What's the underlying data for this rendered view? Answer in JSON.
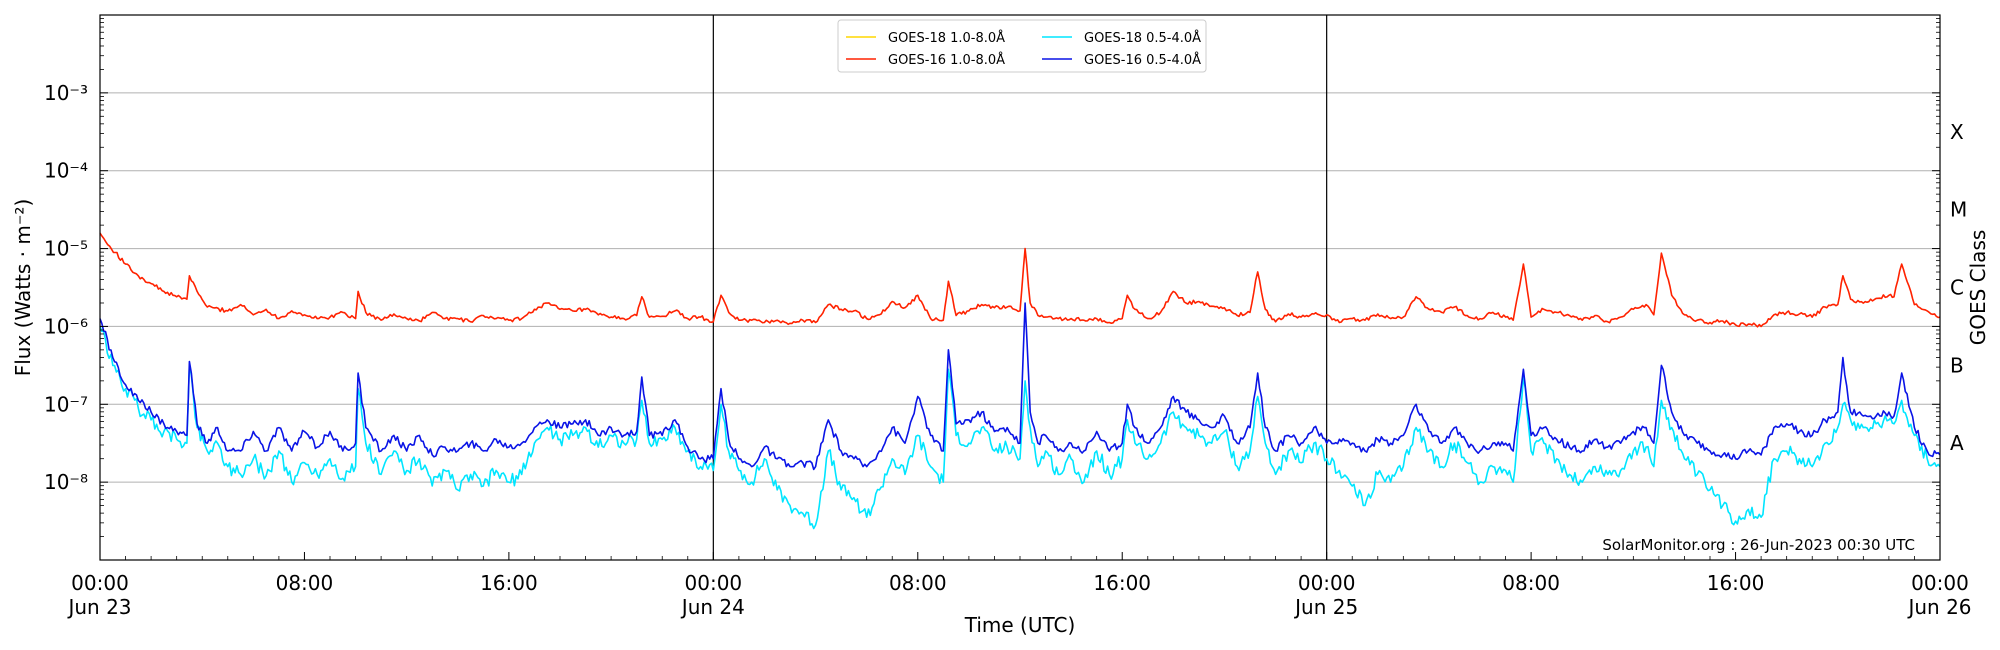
{
  "chart_data": {
    "type": "line",
    "title": "",
    "xlabel": "Time (UTC)",
    "ylabel": "Flux (Watts · m⁻²)",
    "y2label": "GOES Class",
    "yscale": "log",
    "ylim": [
      1e-09,
      0.01
    ],
    "xlim_hours": [
      0,
      72
    ],
    "grid": "horizontal at decades",
    "legend_placement": "top-center",
    "credit": "SolarMonitor.org : 26-Jun-2023 00:30 UTC",
    "day_dividers_hours": [
      24,
      48
    ],
    "x_ticks": [
      {
        "h": 0,
        "line1": "00:00",
        "line2": "Jun 23"
      },
      {
        "h": 8,
        "line1": "08:00",
        "line2": ""
      },
      {
        "h": 16,
        "line1": "16:00",
        "line2": ""
      },
      {
        "h": 24,
        "line1": "00:00",
        "line2": "Jun 24"
      },
      {
        "h": 32,
        "line1": "08:00",
        "line2": ""
      },
      {
        "h": 40,
        "line1": "16:00",
        "line2": ""
      },
      {
        "h": 48,
        "line1": "00:00",
        "line2": "Jun 25"
      },
      {
        "h": 56,
        "line1": "08:00",
        "line2": ""
      },
      {
        "h": 64,
        "line1": "16:00",
        "line2": ""
      },
      {
        "h": 72,
        "line1": "00:00",
        "line2": "Jun 26"
      }
    ],
    "y_ticks": [
      {
        "exp": -8,
        "label": "10⁻⁸"
      },
      {
        "exp": -7,
        "label": "10⁻⁷"
      },
      {
        "exp": -6,
        "label": "10⁻⁶"
      },
      {
        "exp": -5,
        "label": "10⁻⁵"
      },
      {
        "exp": -4,
        "label": "10⁻⁴"
      },
      {
        "exp": -3,
        "label": "10⁻³"
      }
    ],
    "goes_classes": [
      {
        "label": "A",
        "log_flux": -7.5
      },
      {
        "label": "B",
        "log_flux": -6.5
      },
      {
        "label": "C",
        "log_flux": -5.5
      },
      {
        "label": "M",
        "log_flux": -4.5
      },
      {
        "label": "X",
        "log_flux": -3.5
      }
    ],
    "series": [
      {
        "name": "GOES-18 1.0-8.0Å",
        "color": "#ffd700",
        "x": [],
        "log_flux": []
      },
      {
        "name": "GOES-16 1.0-8.0Å",
        "color": "#ff2200",
        "x": [
          0,
          0.3,
          0.6,
          1,
          1.5,
          2,
          2.5,
          3,
          3.4,
          3.5,
          3.8,
          4.2,
          5,
          5.5,
          6,
          6.5,
          7,
          7.5,
          8,
          8.5,
          9,
          9.5,
          10,
          10.1,
          10.4,
          11,
          11.5,
          12,
          12.5,
          13,
          13.5,
          14,
          14.5,
          15,
          15.5,
          16,
          16.5,
          17,
          17.5,
          18,
          18.5,
          19,
          19.5,
          20,
          20.5,
          21,
          21.2,
          21.5,
          22,
          22.5,
          23,
          23.5,
          24,
          24.3,
          24.6,
          25,
          25.5,
          26,
          26.5,
          27,
          27.5,
          28,
          28.5,
          29,
          29.5,
          30,
          30.5,
          31,
          31.5,
          32,
          32.5,
          33,
          33.2,
          33.5,
          34,
          34.5,
          35,
          35.5,
          36,
          36.2,
          36.4,
          36.7,
          37,
          37.5,
          38,
          38.5,
          39,
          39.5,
          40,
          40.2,
          40.5,
          41,
          41.5,
          42,
          42.5,
          43,
          43.5,
          44,
          44.5,
          45,
          45.3,
          45.6,
          46,
          46.5,
          47,
          47.5,
          48,
          48.5,
          49,
          49.5,
          50,
          50.5,
          51,
          51.5,
          52,
          52.5,
          53,
          53.5,
          54,
          54.5,
          55,
          55.3,
          55.7,
          56,
          56.5,
          57,
          57.5,
          58,
          58.5,
          59,
          59.5,
          60,
          60.5,
          60.8,
          61.1,
          61.5,
          62,
          62.5,
          63,
          63.5,
          64,
          64.5,
          65,
          65.5,
          66,
          66.5,
          67,
          67.5,
          68,
          68.2,
          68.5,
          69,
          69.5,
          70,
          70.2,
          70.5,
          71,
          71.5,
          72
        ],
        "log_flux": [
          -4.8,
          -4.95,
          -5.05,
          -5.2,
          -5.35,
          -5.45,
          -5.55,
          -5.62,
          -5.65,
          -5.35,
          -5.55,
          -5.75,
          -5.8,
          -5.72,
          -5.85,
          -5.78,
          -5.9,
          -5.8,
          -5.85,
          -5.9,
          -5.88,
          -5.82,
          -5.9,
          -5.55,
          -5.82,
          -5.92,
          -5.84,
          -5.9,
          -5.93,
          -5.82,
          -5.9,
          -5.9,
          -5.94,
          -5.86,
          -5.9,
          -5.92,
          -5.9,
          -5.78,
          -5.7,
          -5.78,
          -5.8,
          -5.78,
          -5.85,
          -5.88,
          -5.9,
          -5.86,
          -5.62,
          -5.88,
          -5.87,
          -5.8,
          -5.9,
          -5.88,
          -5.94,
          -5.6,
          -5.82,
          -5.92,
          -5.92,
          -5.95,
          -5.92,
          -5.96,
          -5.92,
          -5.95,
          -5.72,
          -5.78,
          -5.8,
          -5.9,
          -5.85,
          -5.68,
          -5.76,
          -5.6,
          -5.9,
          -5.92,
          -5.42,
          -5.86,
          -5.8,
          -5.72,
          -5.76,
          -5.75,
          -5.8,
          -5.0,
          -5.7,
          -5.86,
          -5.88,
          -5.9,
          -5.9,
          -5.92,
          -5.9,
          -5.95,
          -5.9,
          -5.6,
          -5.78,
          -5.9,
          -5.82,
          -5.55,
          -5.7,
          -5.68,
          -5.74,
          -5.76,
          -5.86,
          -5.82,
          -5.3,
          -5.78,
          -5.94,
          -5.84,
          -5.88,
          -5.84,
          -5.85,
          -5.95,
          -5.9,
          -5.92,
          -5.84,
          -5.9,
          -5.88,
          -5.62,
          -5.78,
          -5.82,
          -5.75,
          -5.86,
          -5.9,
          -5.82,
          -5.88,
          -5.92,
          -5.2,
          -5.88,
          -5.78,
          -5.82,
          -5.86,
          -5.92,
          -5.86,
          -5.94,
          -5.88,
          -5.78,
          -5.72,
          -5.85,
          -5.06,
          -5.6,
          -5.85,
          -5.92,
          -5.95,
          -5.93,
          -5.98,
          -5.97,
          -6.0,
          -5.85,
          -5.82,
          -5.84,
          -5.88,
          -5.75,
          -5.72,
          -5.35,
          -5.65,
          -5.7,
          -5.64,
          -5.6,
          -5.62,
          -5.2,
          -5.72,
          -5.8,
          -5.88,
          -5.87
        ]
      },
      {
        "name": "GOES-18 0.5-4.0Å",
        "color": "#00e5ff",
        "x": [
          0,
          0.5,
          1,
          1.5,
          2,
          2.5,
          3,
          3.4,
          3.5,
          3.8,
          4.2,
          4.6,
          5,
          5.5,
          6,
          6.5,
          7,
          7.5,
          8,
          8.5,
          9,
          9.5,
          10,
          10.1,
          10.4,
          11,
          11.5,
          12,
          12.5,
          13,
          13.5,
          14,
          14.5,
          15,
          15.5,
          16,
          16.5,
          17,
          17.5,
          18,
          18.5,
          19,
          19.5,
          20,
          20.5,
          21,
          21.2,
          21.5,
          22,
          22.5,
          23,
          23.5,
          24,
          24.3,
          24.6,
          25,
          25.5,
          26,
          26.5,
          27,
          27.5,
          28,
          28.5,
          29,
          29.5,
          30,
          30.5,
          31,
          31.5,
          32,
          32.5,
          33,
          33.2,
          33.5,
          34,
          34.5,
          35,
          35.5,
          36,
          36.2,
          36.4,
          36.7,
          37,
          37.5,
          38,
          38.5,
          39,
          39.5,
          40,
          40.2,
          40.5,
          41,
          41.5,
          42,
          42.5,
          43,
          43.5,
          44,
          44.5,
          45,
          45.3,
          45.6,
          46,
          46.5,
          47,
          47.5,
          48,
          48.5,
          49,
          49.5,
          50,
          50.5,
          51,
          51.5,
          52,
          52.5,
          53,
          53.5,
          54,
          54.5,
          55,
          55.3,
          55.7,
          56,
          56.5,
          57,
          57.5,
          58,
          58.5,
          59,
          59.5,
          60,
          60.5,
          60.8,
          61.1,
          61.5,
          62,
          62.5,
          63,
          63.5,
          64,
          64.5,
          65,
          65.5,
          66,
          66.5,
          67,
          67.5,
          68,
          68.2,
          68.5,
          69,
          69.5,
          70,
          70.2,
          70.5,
          71,
          71.5,
          72
        ],
        "log_flux": [
          -6.0,
          -6.5,
          -6.8,
          -7.05,
          -7.2,
          -7.35,
          -7.45,
          -7.5,
          -6.5,
          -7.3,
          -7.6,
          -7.5,
          -7.8,
          -7.9,
          -7.7,
          -7.92,
          -7.6,
          -8.0,
          -7.75,
          -7.9,
          -7.7,
          -7.95,
          -7.8,
          -6.8,
          -7.5,
          -7.9,
          -7.6,
          -7.85,
          -7.7,
          -8.05,
          -7.85,
          -8.1,
          -7.9,
          -8.05,
          -7.85,
          -8.0,
          -7.9,
          -7.5,
          -7.3,
          -7.45,
          -7.4,
          -7.3,
          -7.55,
          -7.4,
          -7.5,
          -7.45,
          -6.95,
          -7.5,
          -7.45,
          -7.3,
          -7.6,
          -7.8,
          -7.85,
          -7.0,
          -7.6,
          -7.85,
          -8.0,
          -7.7,
          -8.1,
          -8.3,
          -8.4,
          -8.55,
          -7.6,
          -8.1,
          -8.2,
          -8.45,
          -8.1,
          -7.7,
          -7.9,
          -7.4,
          -7.8,
          -8.0,
          -6.55,
          -7.4,
          -7.5,
          -7.3,
          -7.6,
          -7.55,
          -7.7,
          -6.7,
          -7.3,
          -7.8,
          -7.6,
          -7.9,
          -7.7,
          -8.0,
          -7.6,
          -7.9,
          -7.7,
          -7.2,
          -7.5,
          -7.7,
          -7.5,
          -7.1,
          -7.3,
          -7.4,
          -7.5,
          -7.35,
          -7.8,
          -7.6,
          -6.9,
          -7.5,
          -7.9,
          -7.6,
          -7.75,
          -7.5,
          -7.7,
          -7.85,
          -8.05,
          -8.3,
          -7.9,
          -8.0,
          -7.8,
          -7.3,
          -7.6,
          -7.8,
          -7.5,
          -7.75,
          -8.0,
          -7.8,
          -7.85,
          -8.0,
          -6.65,
          -7.6,
          -7.5,
          -7.7,
          -7.9,
          -8.0,
          -7.8,
          -7.9,
          -7.85,
          -7.6,
          -7.55,
          -7.8,
          -6.95,
          -7.3,
          -7.7,
          -7.9,
          -8.1,
          -8.3,
          -8.5,
          -8.35,
          -8.45,
          -7.7,
          -7.6,
          -7.7,
          -7.8,
          -7.5,
          -7.3,
          -7.0,
          -7.2,
          -7.3,
          -7.25,
          -7.2,
          -7.25,
          -6.95,
          -7.4,
          -7.7,
          -7.8,
          -7.75
        ]
      },
      {
        "name": "GOES-16 0.5-4.0Å",
        "color": "#0a14e6",
        "x": [
          0,
          0.5,
          1,
          1.5,
          2,
          2.5,
          3,
          3.4,
          3.5,
          3.8,
          4.2,
          4.6,
          5,
          5.5,
          6,
          6.5,
          7,
          7.5,
          8,
          8.5,
          9,
          9.5,
          10,
          10.1,
          10.4,
          11,
          11.5,
          12,
          12.5,
          13,
          13.5,
          14,
          14.5,
          15,
          15.5,
          16,
          16.5,
          17,
          17.5,
          18,
          18.5,
          19,
          19.5,
          20,
          20.5,
          21,
          21.2,
          21.5,
          22,
          22.5,
          23,
          23.5,
          24,
          24.3,
          24.6,
          25,
          25.5,
          26,
          26.5,
          27,
          27.5,
          28,
          28.5,
          29,
          29.5,
          30,
          30.5,
          31,
          31.5,
          32,
          32.5,
          33,
          33.2,
          33.5,
          34,
          34.5,
          35,
          35.5,
          36,
          36.2,
          36.4,
          36.7,
          37,
          37.5,
          38,
          38.5,
          39,
          39.5,
          40,
          40.2,
          40.5,
          41,
          41.5,
          42,
          42.5,
          43,
          43.5,
          44,
          44.5,
          45,
          45.3,
          45.6,
          46,
          46.5,
          47,
          47.5,
          48,
          48.5,
          49,
          49.5,
          50,
          50.5,
          51,
          51.5,
          52,
          52.5,
          53,
          53.5,
          54,
          54.5,
          55,
          55.3,
          55.7,
          56,
          56.5,
          57,
          57.5,
          58,
          58.5,
          59,
          59.5,
          60,
          60.5,
          60.8,
          61.1,
          61.5,
          62,
          62.5,
          63,
          63.5,
          64,
          64.5,
          65,
          65.5,
          66,
          66.5,
          67,
          67.5,
          68,
          68.2,
          68.5,
          69,
          69.5,
          70,
          70.2,
          70.5,
          71,
          71.5,
          72
        ],
        "log_flux": [
          -5.9,
          -6.4,
          -6.75,
          -6.95,
          -7.1,
          -7.25,
          -7.35,
          -7.4,
          -6.45,
          -7.25,
          -7.5,
          -7.3,
          -7.6,
          -7.6,
          -7.35,
          -7.6,
          -7.3,
          -7.6,
          -7.35,
          -7.55,
          -7.35,
          -7.6,
          -7.5,
          -6.6,
          -7.3,
          -7.6,
          -7.4,
          -7.6,
          -7.4,
          -7.65,
          -7.55,
          -7.6,
          -7.5,
          -7.6,
          -7.45,
          -7.55,
          -7.5,
          -7.3,
          -7.2,
          -7.3,
          -7.25,
          -7.2,
          -7.4,
          -7.3,
          -7.4,
          -7.35,
          -6.65,
          -7.4,
          -7.4,
          -7.2,
          -7.55,
          -7.7,
          -7.7,
          -6.8,
          -7.45,
          -7.7,
          -7.8,
          -7.55,
          -7.7,
          -7.8,
          -7.75,
          -7.8,
          -7.2,
          -7.6,
          -7.7,
          -7.8,
          -7.6,
          -7.3,
          -7.5,
          -6.9,
          -7.4,
          -7.6,
          -6.3,
          -7.25,
          -7.2,
          -7.1,
          -7.35,
          -7.3,
          -7.5,
          -5.7,
          -7.1,
          -7.5,
          -7.4,
          -7.6,
          -7.5,
          -7.6,
          -7.35,
          -7.6,
          -7.5,
          -7.0,
          -7.3,
          -7.5,
          -7.3,
          -6.9,
          -7.1,
          -7.2,
          -7.3,
          -7.15,
          -7.5,
          -7.3,
          -6.6,
          -7.3,
          -7.6,
          -7.4,
          -7.5,
          -7.3,
          -7.5,
          -7.45,
          -7.5,
          -7.6,
          -7.45,
          -7.5,
          -7.4,
          -7.0,
          -7.35,
          -7.5,
          -7.3,
          -7.5,
          -7.6,
          -7.5,
          -7.5,
          -7.6,
          -6.55,
          -7.4,
          -7.3,
          -7.45,
          -7.55,
          -7.6,
          -7.45,
          -7.55,
          -7.5,
          -7.35,
          -7.3,
          -7.5,
          -6.5,
          -7.1,
          -7.4,
          -7.5,
          -7.6,
          -7.65,
          -7.7,
          -7.6,
          -7.65,
          -7.3,
          -7.25,
          -7.35,
          -7.4,
          -7.2,
          -7.1,
          -6.4,
          -7.1,
          -7.15,
          -7.15,
          -7.1,
          -7.15,
          -6.6,
          -7.3,
          -7.6,
          -7.65,
          -7.65
        ]
      }
    ]
  }
}
